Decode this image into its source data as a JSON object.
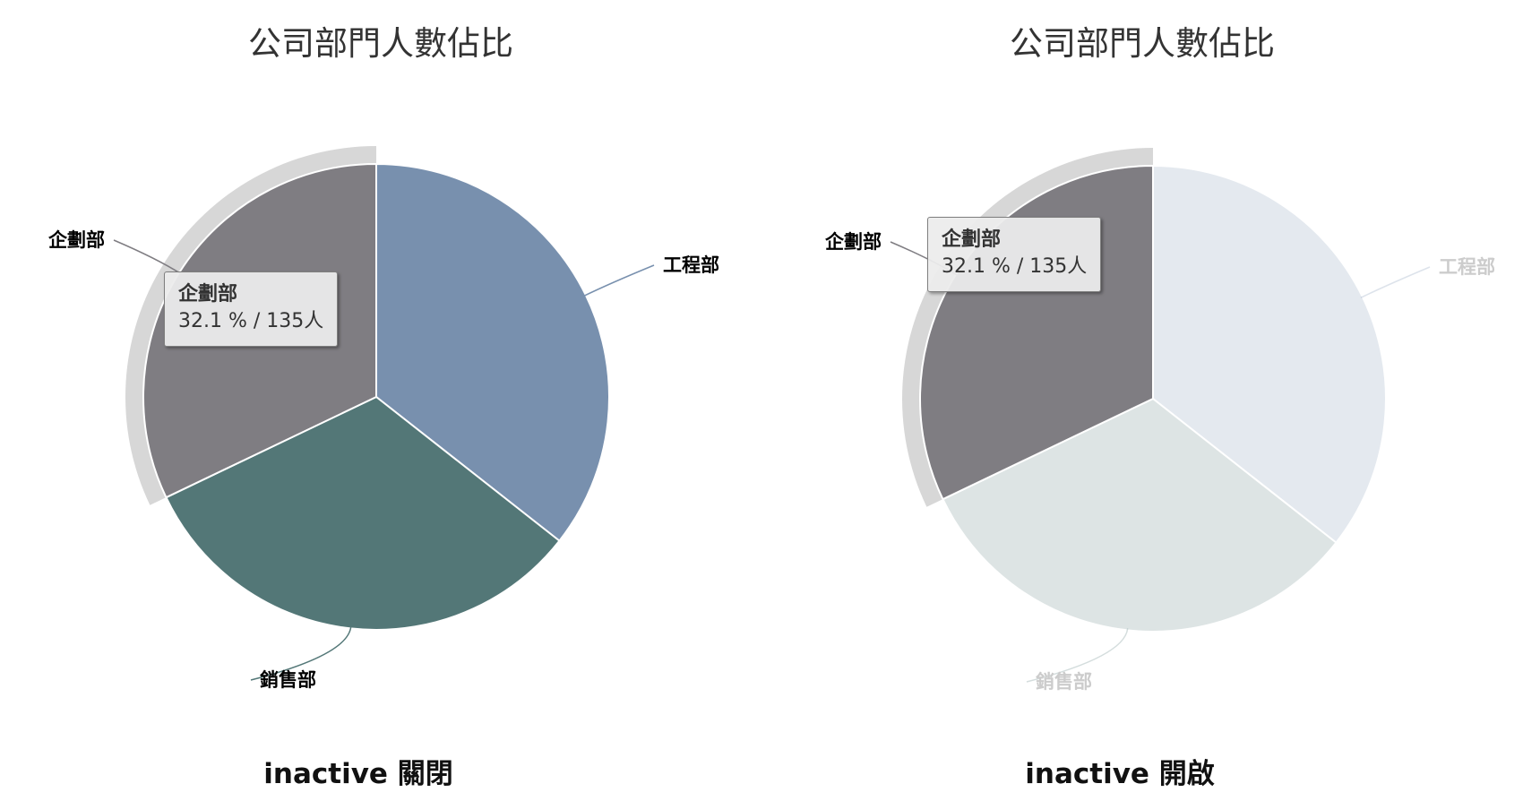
{
  "chart_data": [
    {
      "type": "pie",
      "title": "公司部門人數佔比",
      "categories": [
        "工程部",
        "銷售部",
        "企劃部"
      ],
      "slices": [
        {
          "name": "工程部",
          "percent": 35.6,
          "color": "#7890ae"
        },
        {
          "name": "銷售部",
          "percent": 32.3,
          "color": "#537777"
        },
        {
          "name": "企劃部",
          "percent": 32.1,
          "color": "#7f7d82"
        }
      ],
      "hovered": {
        "name": "企劃部",
        "detail": "32.1 % / 135人"
      },
      "inactive_dimming": false,
      "caption": "inactive 關閉"
    },
    {
      "type": "pie",
      "title": "公司部門人數佔比",
      "categories": [
        "工程部",
        "銷售部",
        "企劃部"
      ],
      "slices": [
        {
          "name": "工程部",
          "percent": 35.6,
          "color": "#7890ae"
        },
        {
          "name": "銷售部",
          "percent": 32.3,
          "color": "#537777"
        },
        {
          "name": "企劃部",
          "percent": 32.1,
          "color": "#7f7d82"
        }
      ],
      "hovered": {
        "name": "企劃部",
        "detail": "32.1 % / 135人"
      },
      "inactive_dimming": true,
      "caption": "inactive 開啟"
    }
  ],
  "colors": {
    "halo": "#d7d7d7",
    "dimmed_label": "#cccccc",
    "label": "#000000"
  }
}
